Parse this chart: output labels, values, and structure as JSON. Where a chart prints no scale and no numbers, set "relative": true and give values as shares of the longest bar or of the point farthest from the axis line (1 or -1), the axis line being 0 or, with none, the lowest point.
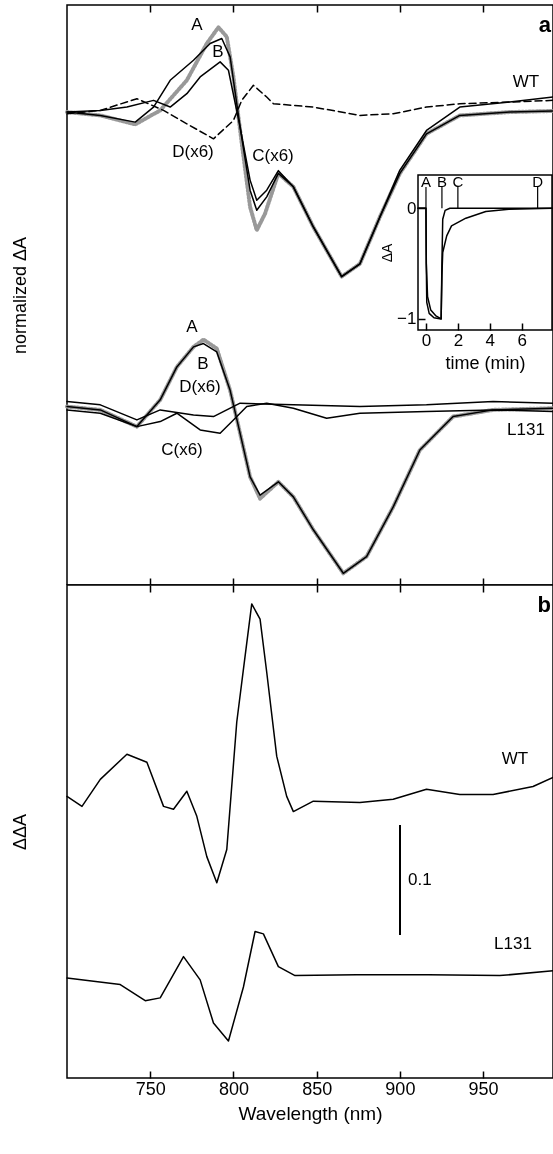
{
  "chart_data": [
    {
      "type": "line",
      "relative": true,
      "ylabel": "normalized ΔA",
      "tick_labels": false,
      "xlim": [
        700,
        992
      ],
      "xticks": [
        750,
        800,
        850,
        900,
        950
      ],
      "series": [
        {
          "color": "#999999",
          "line_style": "dotted",
          "x": [
            700,
            720,
            741,
            756,
            772,
            784,
            791,
            796,
            800,
            805,
            810,
            814,
            819,
            827,
            836,
            848,
            865,
            876,
            888,
            900,
            916,
            936,
            966,
            992
          ],
          "values": [
            0.848,
            0.842,
            0.826,
            0.851,
            0.905,
            0.971,
            1.0,
            0.983,
            0.911,
            0.792,
            0.678,
            0.636,
            0.666,
            0.738,
            0.714,
            0.642,
            0.553,
            0.576,
            0.66,
            0.738,
            0.809,
            0.842,
            0.848,
            0.85
          ]
        },
        {
          "color": "#000000",
          "x": [
            700,
            720,
            741,
            752,
            762,
            776,
            786,
            793,
            798,
            804,
            810,
            814,
            820,
            827,
            836,
            848,
            865,
            876,
            888,
            900,
            916,
            936,
            966,
            992
          ],
          "values": [
            0.848,
            0.842,
            0.83,
            0.857,
            0.905,
            0.941,
            0.971,
            0.98,
            0.947,
            0.821,
            0.708,
            0.672,
            0.696,
            0.738,
            0.714,
            0.642,
            0.553,
            0.576,
            0.66,
            0.738,
            0.809,
            0.842,
            0.848,
            0.85
          ]
        },
        {
          "color": "#000000",
          "x": [
            700,
            720,
            736,
            752,
            762,
            772,
            780,
            792,
            797,
            804,
            810,
            814,
            820,
            827,
            836,
            848,
            865,
            876,
            888,
            900,
            916,
            936,
            966,
            992
          ],
          "values": [
            0.848,
            0.851,
            0.857,
            0.869,
            0.857,
            0.881,
            0.911,
            0.938,
            0.923,
            0.821,
            0.726,
            0.69,
            0.708,
            0.743,
            0.714,
            0.642,
            0.553,
            0.576,
            0.66,
            0.744,
            0.815,
            0.857,
            0.866,
            0.875
          ]
        },
        {
          "color": "#000000",
          "line_style": "dashed",
          "x": [
            700,
            720,
            742,
            758,
            772,
            788,
            800,
            805,
            812,
            820,
            824,
            848,
            876,
            896,
            916,
            936,
            966,
            992
          ],
          "values": [
            0.845,
            0.851,
            0.872,
            0.851,
            0.827,
            0.8,
            0.833,
            0.869,
            0.896,
            0.875,
            0.863,
            0.857,
            0.842,
            0.845,
            0.857,
            0.863,
            0.866,
            0.869
          ]
        },
        {
          "color": "#999999",
          "line_style": "dotted",
          "x": [
            700,
            720,
            742,
            756,
            766,
            776,
            782,
            790,
            798,
            804,
            810,
            816,
            827,
            836,
            848,
            866,
            880,
            896,
            912,
            932,
            956,
            992
          ],
          "values": [
            0.32,
            0.314,
            0.284,
            0.332,
            0.391,
            0.427,
            0.44,
            0.424,
            0.349,
            0.272,
            0.194,
            0.155,
            0.185,
            0.158,
            0.099,
            0.021,
            0.051,
            0.14,
            0.242,
            0.302,
            0.314,
            0.317
          ]
        },
        {
          "color": "#000000",
          "x": [
            700,
            720,
            742,
            756,
            766,
            776,
            782,
            790,
            798,
            804,
            810,
            816,
            827,
            836,
            848,
            866,
            880,
            896,
            912,
            932,
            956,
            992
          ],
          "values": [
            0.32,
            0.314,
            0.284,
            0.332,
            0.391,
            0.427,
            0.433,
            0.418,
            0.349,
            0.272,
            0.194,
            0.161,
            0.185,
            0.158,
            0.099,
            0.021,
            0.051,
            0.14,
            0.242,
            0.302,
            0.314,
            0.317
          ]
        },
        {
          "color": "#000000",
          "x": [
            700,
            720,
            742,
            756,
            766,
            780,
            792,
            800,
            808,
            820,
            836,
            856,
            876,
            916,
            956,
            992
          ],
          "values": [
            0.314,
            0.308,
            0.284,
            0.293,
            0.308,
            0.278,
            0.272,
            0.296,
            0.32,
            0.326,
            0.317,
            0.299,
            0.308,
            0.311,
            0.314,
            0.311
          ]
        },
        {
          "color": "#000000",
          "x": [
            700,
            720,
            742,
            756,
            776,
            788,
            796,
            804,
            836,
            876,
            916,
            956,
            992
          ],
          "values": [
            0.329,
            0.323,
            0.296,
            0.314,
            0.305,
            0.302,
            0.314,
            0.326,
            0.323,
            0.32,
            0.323,
            0.329,
            0.326
          ]
        }
      ],
      "annotations": [
        "a",
        "A",
        "B",
        "D(x6)",
        "C(x6)",
        "WT",
        "A",
        "B",
        "D(x6)",
        "C(x6)",
        "L131"
      ]
    },
    {
      "type": "line",
      "xlabel": "time (min)",
      "ylabel": "ΔA",
      "xlim": [
        -0.5,
        7.9
      ],
      "ylim": [
        -1.1,
        0.3
      ],
      "xticks": [
        0,
        2,
        4,
        6
      ],
      "yticks": [
        -1,
        0
      ],
      "series": [
        {
          "color": "#000000",
          "x": [
            -0.5,
            0,
            0.02,
            0.05,
            0.2,
            0.5,
            0.95,
            1.0,
            1.05,
            1.2,
            1.5,
            7.9
          ],
          "values": [
            0,
            0,
            -0.5,
            -0.85,
            -0.95,
            -0.99,
            -1.0,
            -0.5,
            -0.1,
            -0.02,
            0,
            0
          ]
        },
        {
          "color": "#000000",
          "x": [
            -0.5,
            0,
            0.02,
            0.1,
            0.3,
            0.6,
            0.95,
            1.0,
            1.05,
            1.3,
            1.6,
            2.5,
            3.75,
            5.2,
            7.9
          ],
          "values": [
            0,
            0,
            -0.5,
            -0.8,
            -0.92,
            -0.97,
            -1.0,
            -0.6,
            -0.4,
            -0.25,
            -0.16,
            -0.09,
            -0.03,
            -0.01,
            0
          ]
        }
      ],
      "ref_lines": [
        {
          "axis": "x",
          "value": 0,
          "label": "A"
        },
        {
          "axis": "x",
          "value": 1,
          "label": "B"
        },
        {
          "axis": "x",
          "value": 2,
          "label": "C"
        },
        {
          "axis": "x",
          "value": 7,
          "label": "D"
        }
      ]
    },
    {
      "type": "line",
      "relative": true,
      "xlabel": "Wavelength (nm)",
      "ylabel": "ΔΔA",
      "tick_labels": "x",
      "xlim": [
        700,
        992
      ],
      "xticks": [
        750,
        800,
        850,
        900,
        950
      ],
      "series": [
        {
          "color": "#000000",
          "x": [
            700,
            709,
            720,
            736,
            748,
            758,
            764,
            772,
            778,
            784,
            790,
            796,
            802,
            807,
            811,
            816,
            820,
            826,
            832,
            836,
            848,
            876,
            896,
            916,
            936,
            956,
            980,
            992
          ],
          "values": [
            0.594,
            0.573,
            0.63,
            0.683,
            0.666,
            0.573,
            0.567,
            0.605,
            0.552,
            0.467,
            0.412,
            0.482,
            0.751,
            0.89,
            1.0,
            0.968,
            0.856,
            0.679,
            0.594,
            0.562,
            0.584,
            0.581,
            0.588,
            0.609,
            0.598,
            0.598,
            0.615,
            0.634
          ]
        },
        {
          "color": "#000000",
          "x": [
            700,
            732,
            747,
            756,
            770,
            780,
            788,
            797,
            806,
            813,
            818,
            827,
            837,
            874,
            917,
            960,
            992
          ],
          "values": [
            0.211,
            0.197,
            0.163,
            0.169,
            0.256,
            0.207,
            0.116,
            0.078,
            0.192,
            0.309,
            0.304,
            0.235,
            0.216,
            0.218,
            0.218,
            0.216,
            0.226
          ]
        }
      ],
      "annotations": [
        "b",
        "WT",
        "0.1",
        "L131"
      ]
    }
  ]
}
